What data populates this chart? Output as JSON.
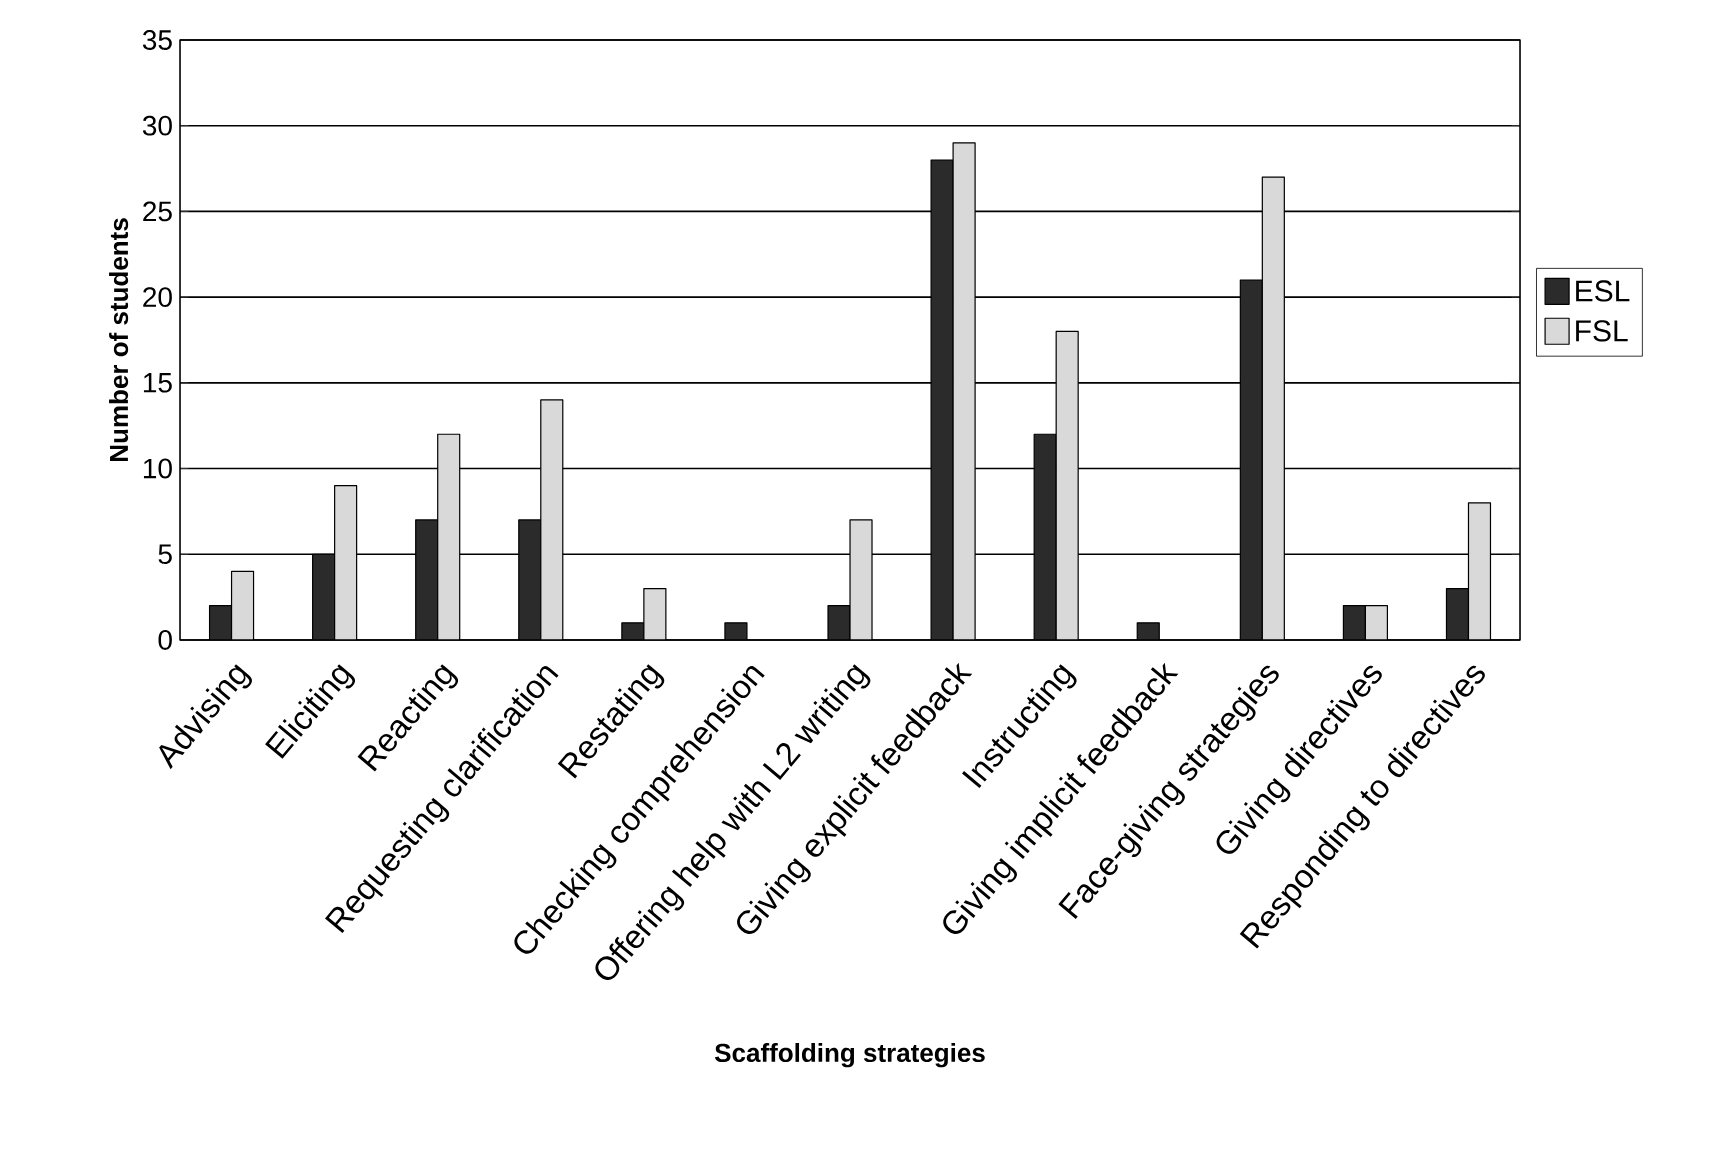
{
  "chart_data": {
    "type": "bar",
    "xlabel": "Scaffolding strategies",
    "ylabel": "Number of students",
    "categories": [
      "Advising",
      "Eliciting",
      "Reacting",
      "Requesting clarification",
      "Restating",
      "Checking comprehension",
      "Offering help with L2 writing",
      "Giving explicit feedback",
      "Instructing",
      "Giving implicit feedback",
      "Face-giving strategies",
      "Giving directives",
      "Responding to directives"
    ],
    "series": [
      {
        "name": "ESL",
        "color": "#2b2b2b",
        "values": [
          2,
          5,
          7,
          7,
          1,
          1,
          2,
          28,
          12,
          1,
          21,
          2,
          3
        ]
      },
      {
        "name": "FSL",
        "color": "#d9d9d9",
        "values": [
          4,
          9,
          12,
          14,
          3,
          0,
          7,
          29,
          18,
          0,
          27,
          2,
          8
        ]
      }
    ],
    "ylim": [
      0,
      35
    ],
    "yticks": [
      0,
      5,
      10,
      15,
      20,
      25,
      30,
      35
    ],
    "grid": "y",
    "legend": "right"
  }
}
